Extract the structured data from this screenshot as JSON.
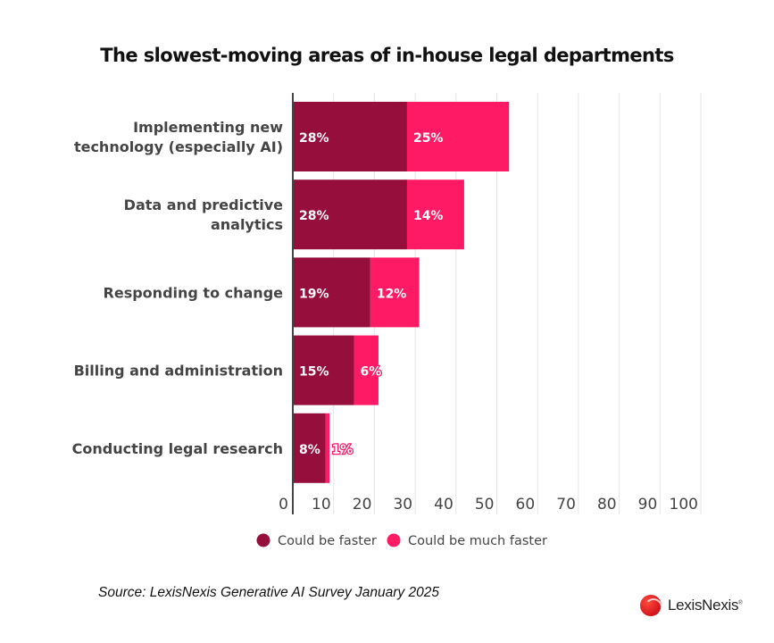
{
  "chart_data": {
    "type": "bar",
    "orientation": "horizontal",
    "stacked": true,
    "title": "The slowest-moving areas of in-house legal departments",
    "categories": [
      [
        "Implementing new",
        "technology (especially AI)"
      ],
      [
        "Data and predictive",
        "analytics"
      ],
      [
        "Responding to change"
      ],
      [
        "Billing and administration"
      ],
      [
        "Conducting legal research"
      ]
    ],
    "series": [
      {
        "name": "Could be faster",
        "color": "#960f3c",
        "values": [
          28,
          28,
          19,
          15,
          8
        ],
        "labels": [
          "28%",
          "28%",
          "19%",
          "15%",
          "8%"
        ]
      },
      {
        "name": "Could be much faster",
        "color": "#ff1a66",
        "values": [
          25,
          14,
          12,
          6,
          1
        ],
        "labels": [
          "25%",
          "14%",
          "12%",
          "6%",
          "1%"
        ]
      }
    ],
    "xlim": [
      0,
      100
    ],
    "xticks": [
      "0",
      "10",
      "20",
      "30",
      "40",
      "50",
      "60",
      "70",
      "80",
      "90",
      "100"
    ],
    "xlabel": "",
    "ylabel": "",
    "grid": true,
    "legend": "bottom"
  },
  "source": "Source: LexisNexis Generative AI Survey January 2025",
  "brand": {
    "name": "LexisNexis",
    "mark": "®"
  }
}
